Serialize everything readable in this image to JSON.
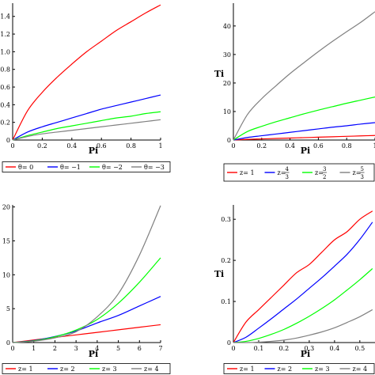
{
  "chart_data": [
    {
      "type": "line",
      "xlabel": "Pi",
      "ylabel": "",
      "xlim": [
        0,
        1
      ],
      "ylim": [
        0,
        1.55
      ],
      "xticks": [
        "0",
        "0.2",
        "0.4",
        "0.6",
        "0.8",
        "1"
      ],
      "yticks": [
        "0",
        "0.2",
        "0.4",
        "0.6",
        "0.8",
        "1.0",
        "1.2",
        "1.4"
      ],
      "x": [
        0,
        0.1,
        0.2,
        0.3,
        0.4,
        0.5,
        0.6,
        0.7,
        0.8,
        0.9,
        1.0
      ],
      "series": [
        {
          "name": "θ= 0",
          "color": "#ff0000",
          "values": [
            0,
            0.33,
            0.54,
            0.71,
            0.86,
            1.0,
            1.12,
            1.24,
            1.34,
            1.44,
            1.53
          ]
        },
        {
          "name": "θ= −1",
          "color": "#0000ff",
          "values": [
            0,
            0.09,
            0.15,
            0.2,
            0.25,
            0.3,
            0.35,
            0.39,
            0.43,
            0.47,
            0.51
          ]
        },
        {
          "name": "θ= −2",
          "color": "#00ff00",
          "values": [
            0,
            0.05,
            0.09,
            0.13,
            0.16,
            0.19,
            0.22,
            0.25,
            0.27,
            0.3,
            0.32
          ]
        },
        {
          "name": "θ= −3",
          "color": "#808080",
          "values": [
            0,
            0.04,
            0.07,
            0.09,
            0.11,
            0.13,
            0.15,
            0.17,
            0.19,
            0.21,
            0.23
          ]
        }
      ]
    },
    {
      "type": "line",
      "xlabel": "Pi",
      "ylabel": "Ti",
      "xlim": [
        0,
        1
      ],
      "ylim": [
        0,
        48
      ],
      "xticks": [
        "0",
        "0.2",
        "0.4",
        "0.6",
        "0.8",
        "1"
      ],
      "yticks": [
        "0",
        "10",
        "20",
        "30",
        "40"
      ],
      "x": [
        0,
        0.1,
        0.2,
        0.3,
        0.4,
        0.5,
        0.6,
        0.7,
        0.8,
        0.9,
        1.0
      ],
      "series": [
        {
          "name": "z= 1",
          "color": "#ff0000",
          "values": [
            0,
            0.25,
            0.4,
            0.55,
            0.7,
            0.85,
            1.0,
            1.15,
            1.3,
            1.45,
            1.6
          ]
        },
        {
          "name": "z= 4/3",
          "color": "#0000ff",
          "values": [
            0,
            0.9,
            1.5,
            2.1,
            2.7,
            3.3,
            3.9,
            4.5,
            5.0,
            5.6,
            6.1
          ]
        },
        {
          "name": "z= 3/2",
          "color": "#00ff00",
          "values": [
            0,
            3.0,
            4.8,
            6.4,
            7.8,
            9.2,
            10.5,
            11.7,
            12.9,
            14.0,
            15.1
          ]
        },
        {
          "name": "z= 5/3",
          "color": "#808080",
          "values": [
            0,
            9.0,
            14.5,
            19.0,
            23.3,
            27.2,
            31.0,
            34.6,
            38.0,
            41.3,
            45.0
          ]
        }
      ]
    },
    {
      "type": "line",
      "xlabel": "Pi",
      "ylabel": "",
      "xlim": [
        0,
        7
      ],
      "ylim": [
        0,
        20.3
      ],
      "xticks": [
        "0",
        "1",
        "2",
        "3",
        "4",
        "5",
        "6",
        "7"
      ],
      "yticks": [
        "0",
        "5",
        "10",
        "15",
        "20"
      ],
      "x": [
        0,
        1,
        2,
        3,
        4,
        5,
        6,
        7
      ],
      "series": [
        {
          "name": "z= 1",
          "color": "#ff0000",
          "values": [
            0,
            0.38,
            0.76,
            1.13,
            1.5,
            1.88,
            2.26,
            2.63
          ]
        },
        {
          "name": "z= 2",
          "color": "#0000ff",
          "values": [
            0,
            0.3,
            0.9,
            1.7,
            2.9,
            4.0,
            5.4,
            6.8
          ]
        },
        {
          "name": "z= 3",
          "color": "#00ff00",
          "values": [
            0,
            0.25,
            0.85,
            1.85,
            3.4,
            5.8,
            8.9,
            12.5
          ]
        },
        {
          "name": "z= 4",
          "color": "#808080",
          "values": [
            0,
            0.2,
            0.7,
            1.6,
            3.8,
            7.2,
            12.9,
            20.2
          ]
        }
      ]
    },
    {
      "type": "line",
      "xlabel": "Pi",
      "ylabel": "Ti",
      "xlim": [
        0,
        0.56
      ],
      "ylim": [
        0,
        0.335
      ],
      "xticks": [
        "0",
        "0.1",
        "0.2",
        "0.3",
        "0.4",
        "0.5"
      ],
      "yticks": [
        "0",
        "0.1",
        "0.2",
        "0.3"
      ],
      "x": [
        0,
        0.05,
        0.1,
        0.15,
        0.2,
        0.25,
        0.3,
        0.35,
        0.4,
        0.45,
        0.5,
        0.55
      ],
      "series": [
        {
          "name": "z= 1",
          "color": "#ff0000",
          "values": [
            0,
            0.05,
            0.08,
            0.11,
            0.14,
            0.17,
            0.19,
            0.22,
            0.25,
            0.27,
            0.3,
            0.32
          ]
        },
        {
          "name": "z= 2",
          "color": "#0000ff",
          "values": [
            0,
            0.013,
            0.035,
            0.058,
            0.082,
            0.106,
            0.132,
            0.158,
            0.186,
            0.215,
            0.251,
            0.293
          ]
        },
        {
          "name": "z= 3",
          "color": "#00ff00",
          "values": [
            0,
            0.003,
            0.01,
            0.02,
            0.032,
            0.047,
            0.064,
            0.083,
            0.104,
            0.128,
            0.153,
            0.18
          ]
        },
        {
          "name": "z= 4",
          "color": "#808080",
          "values": [
            0,
            0.0,
            0.001,
            0.003,
            0.006,
            0.011,
            0.018,
            0.026,
            0.036,
            0.049,
            0.063,
            0.08
          ]
        }
      ]
    }
  ],
  "legend_fractions": {
    "1": {
      "z= 4/3": {
        "num": "4",
        "den": "3"
      },
      "z= 3/2": {
        "num": "3",
        "den": "2"
      },
      "z= 5/3": {
        "num": "5",
        "den": "3"
      }
    }
  }
}
